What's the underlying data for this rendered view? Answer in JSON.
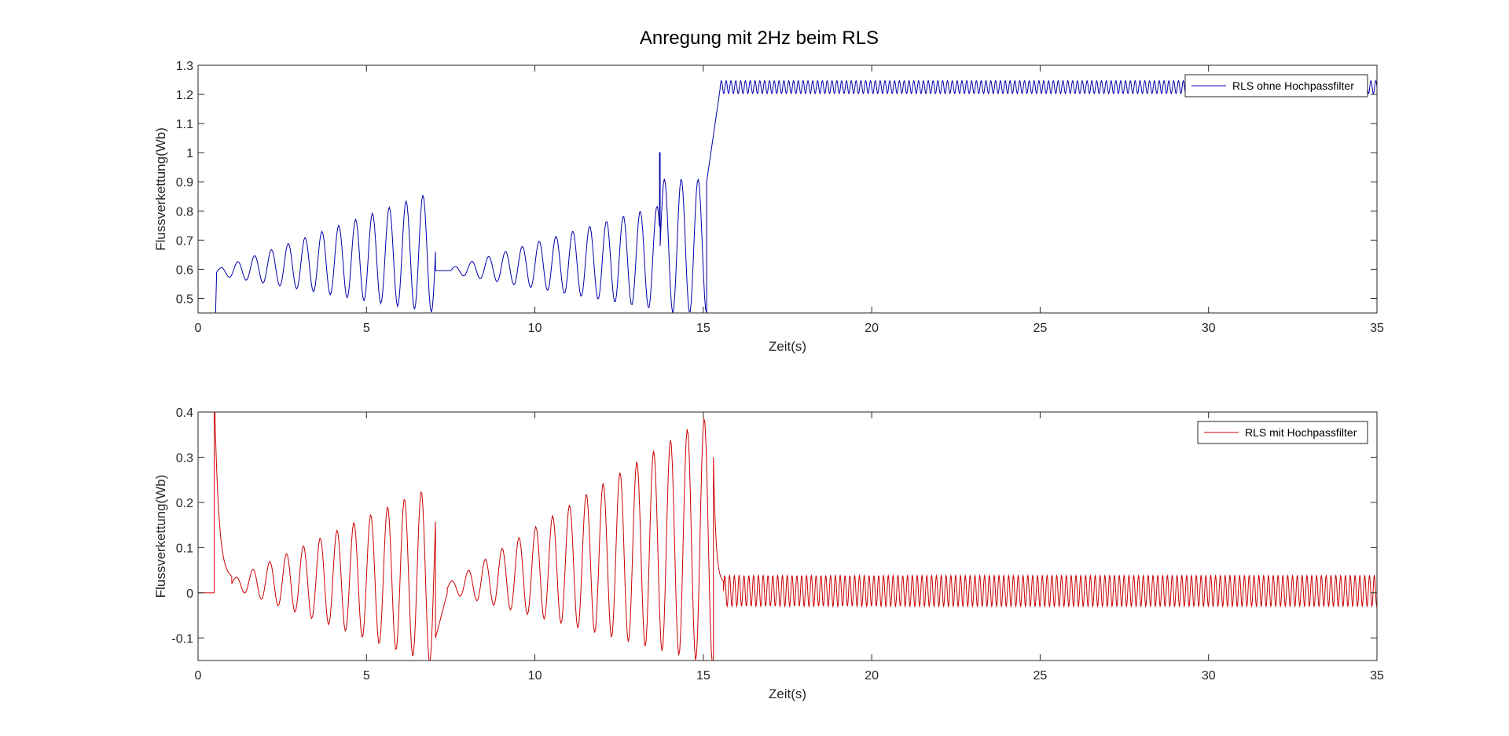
{
  "figure_title": "Anregung mit 2Hz beim RLS",
  "chart_data": [
    {
      "type": "line",
      "xlabel": "Zeit(s)",
      "ylabel": "Flussverkettung(Wb)",
      "xlim": [
        0,
        35
      ],
      "ylim": [
        0.45,
        1.3
      ],
      "xticks": [
        0,
        5,
        10,
        15,
        20,
        25,
        30,
        35
      ],
      "yticks": [
        0.5,
        0.6,
        0.7,
        0.8,
        0.9,
        1,
        1.1,
        1.2,
        1.3
      ],
      "ytick_labels": [
        "0.5",
        "0.6",
        "0.7",
        "0.8",
        "0.9",
        "1",
        "1.1",
        "1.2",
        "1.3"
      ],
      "legend_placement": "top-right",
      "grid": false,
      "series": [
        {
          "name": "RLS ohne Hochpassfilter",
          "color": "#0000aa",
          "segments": [
            {
              "t0": 0.0,
              "t1": 0.52,
              "type": "const",
              "value": 0.45
            },
            {
              "t0": 0.52,
              "t1": 0.55,
              "type": "step",
              "from": 0.45,
              "to": 0.58
            },
            {
              "t0": 0.55,
              "t1": 7.05,
              "type": "oscillation",
              "freq": 2,
              "center_start": 0.59,
              "center_end": 0.66,
              "amp_start": 0.01,
              "amp_end": 0.21
            },
            {
              "t0": 7.05,
              "t1": 7.5,
              "type": "const",
              "value": 0.595
            },
            {
              "t0": 7.5,
              "t1": 13.7,
              "type": "oscillation",
              "freq": 2,
              "center_start": 0.595,
              "center_end": 0.64,
              "amp_start": 0.01,
              "amp_end": 0.18
            },
            {
              "t0": 13.7,
              "t1": 13.72,
              "type": "spike",
              "value": 1.0
            },
            {
              "t0": 13.72,
              "t1": 15.1,
              "type": "oscillation",
              "freq": 2,
              "center_start": 0.68,
              "center_end": 0.68,
              "amp_start": 0.23,
              "amp_end": 0.23
            },
            {
              "t0": 15.1,
              "t1": 15.5,
              "type": "rise",
              "from": 0.9,
              "to": 1.22
            },
            {
              "t0": 15.5,
              "t1": 35.0,
              "type": "oscillation",
              "freq": 7,
              "center_start": 1.225,
              "center_end": 1.225,
              "amp_start": 0.022,
              "amp_end": 0.022
            }
          ]
        }
      ]
    },
    {
      "type": "line",
      "xlabel": "Zeit(s)",
      "ylabel": "Flussverkettung(Wb)",
      "xlim": [
        0,
        35
      ],
      "ylim": [
        -0.15,
        0.4
      ],
      "xticks": [
        0,
        5,
        10,
        15,
        20,
        25,
        30,
        35
      ],
      "yticks": [
        -0.1,
        0,
        0.1,
        0.2,
        0.3,
        0.4
      ],
      "ytick_labels": [
        "-0.1",
        "0",
        "0.1",
        "0.2",
        "0.3",
        "0.4"
      ],
      "legend_placement": "top-right",
      "grid": false,
      "series": [
        {
          "name": "RLS mit Hochpassfilter",
          "color": "#cc0000",
          "segments": [
            {
              "t0": 0.0,
              "t1": 0.48,
              "type": "const",
              "value": 0.0
            },
            {
              "t0": 0.48,
              "t1": 0.5,
              "type": "spike",
              "value": 0.4
            },
            {
              "t0": 0.5,
              "t1": 1.0,
              "type": "decay",
              "from": 0.4,
              "to": 0.03
            },
            {
              "t0": 1.0,
              "t1": 7.05,
              "type": "oscillation",
              "freq": 2,
              "center_start": 0.02,
              "center_end": 0.04,
              "amp_start": 0.01,
              "amp_end": 0.2
            },
            {
              "t0": 7.05,
              "t1": 7.4,
              "type": "rise",
              "from": -0.1,
              "to": 0.0
            },
            {
              "t0": 7.4,
              "t1": 15.3,
              "type": "oscillation",
              "freq": 2,
              "center_start": 0.01,
              "center_end": 0.12,
              "amp_start": 0.01,
              "amp_end": 0.28
            },
            {
              "t0": 15.3,
              "t1": 15.6,
              "type": "decay",
              "from": 0.3,
              "to": 0.02
            },
            {
              "t0": 15.6,
              "t1": 35.0,
              "type": "oscillation",
              "freq": 7,
              "center_start": 0.004,
              "center_end": 0.004,
              "amp_start": 0.034,
              "amp_end": 0.034
            }
          ]
        }
      ]
    }
  ]
}
